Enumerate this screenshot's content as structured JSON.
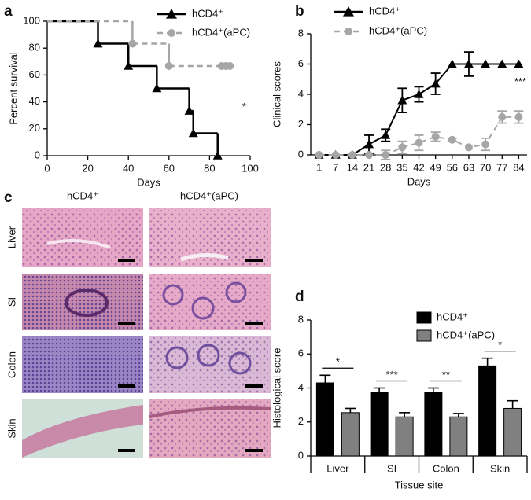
{
  "chart_data": [
    {
      "type": "line",
      "panel": "a",
      "step": true,
      "xlabel": "Days",
      "ylabel": "Percent survival",
      "annotation": "*",
      "xlim": [
        0,
        100
      ],
      "xticks": [
        0,
        20,
        40,
        60,
        80,
        100
      ],
      "ylim": [
        0,
        100
      ],
      "yticks": [
        0,
        20,
        40,
        60,
        80,
        100
      ],
      "series": [
        {
          "name": "hCD4⁺",
          "color": "#000000",
          "style": "solid",
          "x": [
            0,
            25,
            40,
            54,
            70,
            72,
            84
          ],
          "values": [
            100,
            83.3,
            66.7,
            50,
            33.3,
            16.7,
            0
          ]
        },
        {
          "name": "hCD4⁺(aPC)",
          "color": "#a6a6a6",
          "style": "dashed",
          "x": [
            0,
            42,
            60,
            86,
            88,
            90
          ],
          "values": [
            100,
            83.3,
            66.7,
            66.7,
            66.7,
            66.7
          ]
        }
      ]
    },
    {
      "type": "line",
      "panel": "b",
      "xlabel": "Days",
      "ylabel": "Clinical scores",
      "annotation": "***",
      "categories": [
        1,
        7,
        14,
        21,
        28,
        35,
        42,
        49,
        56,
        63,
        70,
        77,
        84
      ],
      "ylim": [
        0,
        8
      ],
      "yticks": [
        0,
        2,
        4,
        6,
        8
      ],
      "series": [
        {
          "name": "hCD4⁺",
          "color": "#000000",
          "style": "solid",
          "values": [
            0,
            0,
            0,
            0.7,
            1.3,
            3.6,
            4.0,
            4.7,
            6,
            6,
            6,
            6,
            6
          ],
          "errors": [
            0,
            0,
            0,
            0.6,
            0.4,
            0.8,
            0.5,
            0.7,
            0,
            0.8,
            0,
            0,
            0
          ]
        },
        {
          "name": "hCD4⁺(aPC)",
          "color": "#a6a6a6",
          "style": "dashed",
          "values": [
            0,
            0,
            0,
            0,
            0,
            0.5,
            0.8,
            1.2,
            1.0,
            0.5,
            0.7,
            2.5,
            2.5
          ],
          "errors": [
            0,
            0,
            0,
            0,
            0.3,
            0.4,
            0.5,
            0.3,
            0.1,
            0,
            0.4,
            0.4,
            0.4
          ]
        }
      ]
    },
    {
      "type": "bar",
      "panel": "d",
      "xlabel": "Tissue site",
      "ylabel": "Histological score",
      "categories": [
        "Liver",
        "SI",
        "Colon",
        "Skin"
      ],
      "significance": [
        "*",
        "***",
        "**",
        "*"
      ],
      "ylim": [
        0,
        8
      ],
      "yticks": [
        0,
        2,
        4,
        6,
        8
      ],
      "series": [
        {
          "name": "hCD4⁺",
          "color": "#000000",
          "values": [
            4.3,
            3.75,
            3.75,
            5.3
          ],
          "errors": [
            0.45,
            0.25,
            0.25,
            0.45
          ]
        },
        {
          "name": "hCD4⁺(aPC)",
          "color": "#808080",
          "values": [
            2.55,
            2.3,
            2.3,
            2.8
          ],
          "errors": [
            0.25,
            0.25,
            0.2,
            0.45
          ]
        }
      ]
    }
  ],
  "histology": {
    "panel": "c",
    "columns": [
      "hCD4⁺",
      "hCD4⁺(aPC)"
    ],
    "rows": [
      "Liver",
      "SI",
      "Colon",
      "Skin"
    ]
  }
}
